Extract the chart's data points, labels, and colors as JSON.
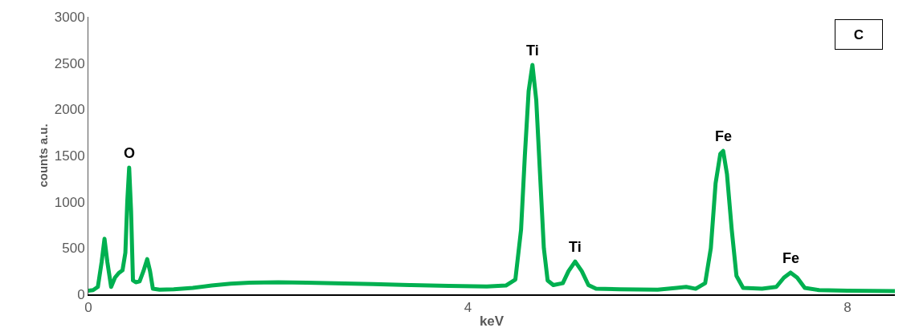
{
  "chart_data": {
    "type": "line",
    "xlabel": "keV",
    "ylabel": "counts a.u.",
    "x": [
      0,
      0.05,
      0.1,
      0.14,
      0.17,
      0.2,
      0.24,
      0.28,
      0.32,
      0.36,
      0.39,
      0.41,
      0.43,
      0.45,
      0.47,
      0.5,
      0.54,
      0.58,
      0.62,
      0.65,
      0.68,
      0.75,
      0.9,
      1.1,
      1.3,
      1.5,
      1.7,
      2.0,
      2.3,
      2.6,
      3.0,
      3.4,
      3.8,
      4.2,
      4.4,
      4.5,
      4.56,
      4.6,
      4.64,
      4.68,
      4.72,
      4.76,
      4.8,
      4.84,
      4.9,
      5.0,
      5.06,
      5.13,
      5.2,
      5.27,
      5.35,
      5.6,
      6.0,
      6.2,
      6.3,
      6.4,
      6.5,
      6.56,
      6.61,
      6.66,
      6.69,
      6.73,
      6.78,
      6.83,
      6.9,
      7.1,
      7.25,
      7.33,
      7.4,
      7.47,
      7.55,
      7.7,
      8.0,
      8.5
    ],
    "series": [
      {
        "color": "#00b050",
        "values": [
          40,
          45,
          80,
          350,
          600,
          350,
          80,
          180,
          230,
          260,
          450,
          1000,
          1370,
          900,
          150,
          130,
          140,
          250,
          380,
          250,
          60,
          50,
          55,
          70,
          95,
          115,
          125,
          130,
          125,
          120,
          110,
          100,
          90,
          85,
          95,
          160,
          700,
          1500,
          2200,
          2480,
          2100,
          1300,
          500,
          150,
          100,
          120,
          250,
          355,
          250,
          100,
          60,
          55,
          50,
          70,
          80,
          60,
          120,
          500,
          1200,
          1520,
          1550,
          1300,
          700,
          200,
          70,
          60,
          80,
          180,
          235,
          180,
          70,
          45,
          40,
          35
        ]
      }
    ],
    "xlim": [
      0,
      8.5
    ],
    "xticks": [
      0,
      4,
      8
    ],
    "ylim": [
      0,
      3000
    ],
    "yticks": [
      0,
      500,
      1000,
      1500,
      2000,
      2500,
      3000
    ],
    "marker": "none",
    "line_style": "solid",
    "annotations": [
      {
        "text": "O",
        "x": 0.43,
        "y": 1370
      },
      {
        "text": "Ti",
        "x": 4.68,
        "y": 2480
      },
      {
        "text": "Ti",
        "x": 5.13,
        "y": 355
      },
      {
        "text": "Fe",
        "x": 6.69,
        "y": 1550
      },
      {
        "text": "Fe",
        "x": 7.4,
        "y": 235
      },
      "C"
    ]
  }
}
